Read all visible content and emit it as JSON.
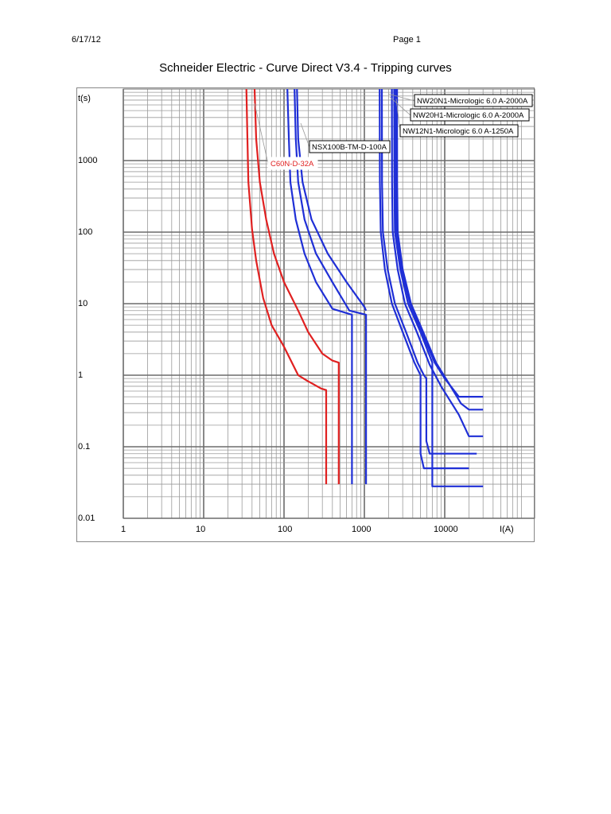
{
  "header": {
    "date": "6/17/12",
    "page": "Page 1"
  },
  "title": "Schneider Electric - Curve Direct V3.4 - Tripping curves",
  "chart_data": {
    "type": "line",
    "title": "Schneider Electric - Curve Direct V3.4 - Tripping curves",
    "xlabel": "I(A)",
    "ylabel": "t(s)",
    "xscale": "log",
    "yscale": "log",
    "xlim": [
      1,
      30000
    ],
    "ylim": [
      0.01,
      10000
    ],
    "grid": true,
    "x_tick_labels": [
      "1",
      "10",
      "100",
      "1000",
      "10000"
    ],
    "y_tick_labels": [
      "1000",
      "100",
      "10",
      "1",
      "0.1",
      "0.01"
    ],
    "curve_labels": [
      {
        "text": "NW20N1-Micrologic 6.0 A-2000A",
        "color": "#000000"
      },
      {
        "text": "NW20H1-Micrologic 6.0 A-2000A",
        "color": "#000000"
      },
      {
        "text": "NW12N1-Micrologic 6.0 A-1250A",
        "color": "#000000"
      },
      {
        "text": "NSX100B-TM-D-100A",
        "color": "#000000"
      },
      {
        "text": "C60N-D-32A",
        "color": "#e02020"
      }
    ],
    "series": [
      {
        "name": "C60N-D-32A",
        "color": "#e02020",
        "curves": [
          {
            "x": [
              34,
              35,
              36,
              40,
              45,
              55,
              70,
              100,
              150,
              190,
              290,
              335,
              335
            ],
            "y": [
              10000,
              2000,
              500,
              110,
              40,
              12,
              5,
              2.5,
              1,
              0.85,
              0.65,
              0.62,
              0.03
            ]
          },
          {
            "x": [
              43,
              45,
              50,
              60,
              75,
              100,
              150,
              200,
              300,
              400,
              480,
              480
            ],
            "y": [
              10000,
              2000,
              500,
              150,
              50,
              20,
              8,
              4,
              2,
              1.6,
              1.5,
              0.03
            ]
          }
        ]
      },
      {
        "name": "NSX100B-TM-D-100A",
        "color": "#1f2fd6",
        "curves": [
          {
            "x": [
              110,
              115,
              120,
              140,
              180,
              250,
              400,
              700,
              700
            ],
            "y": [
              10000,
              2000,
              500,
              150,
              50,
              20,
              8.5,
              7,
              0.03
            ]
          },
          {
            "x": [
              135,
              140,
              150,
              180,
              250,
              400,
              650,
              1050,
              1050
            ],
            "y": [
              10000,
              2000,
              500,
              150,
              50,
              20,
              8,
              7,
              0.03
            ]
          },
          {
            "x": [
              145,
              150,
              170,
              220,
              350,
              600,
              1000,
              1050
            ],
            "y": [
              10000,
              2000,
              500,
              150,
              50,
              20,
              9,
              8
            ]
          }
        ]
      },
      {
        "name": "NW12N1-Micrologic 6.0 A-1250A",
        "color": "#1f2fd6",
        "curves": [
          {
            "x": [
              1550,
              1560,
              1600,
              1800,
              2200,
              3000,
              4200,
              5000,
              5000,
              5500,
              20000
            ],
            "y": [
              10000,
              500,
              100,
              30,
              10,
              4,
              1.5,
              1,
              0.08,
              0.05,
              0.05
            ]
          },
          {
            "x": [
              1650,
              1660,
              1700,
              1950,
              2400,
              3300,
              4600,
              5500,
              5900,
              5900,
              6500,
              25000
            ],
            "y": [
              10000,
              500,
              100,
              30,
              10,
              4,
              1.5,
              1,
              0.9,
              0.12,
              0.08,
              0.08
            ]
          }
        ]
      },
      {
        "name": "NW20N1-Micrologic 6.0 A-2000A",
        "color": "#1f2fd6",
        "curves": [
          {
            "x": [
              2200,
              2210,
              2250,
              2600,
              3200,
              4500,
              6500,
              9000,
              15000,
              20000,
              30000
            ],
            "y": [
              10000,
              500,
              100,
              30,
              10,
              4,
              1.4,
              0.7,
              0.28,
              0.14,
              0.14
            ]
          },
          {
            "x": [
              2350,
              2360,
              2400,
              2800,
              3500,
              5000,
              7000,
              7000,
              8000,
              30000
            ],
            "y": [
              10000,
              500,
              100,
              30,
              10,
              4,
              1.5,
              0.028,
              0.028,
              0.028
            ]
          }
        ]
      },
      {
        "name": "NW20H1-Micrologic 6.0 A-2000A",
        "color": "#1f2fd6",
        "curves": [
          {
            "x": [
              2450,
              2460,
              2500,
              2900,
              3700,
              5200,
              7500,
              10000,
              15000,
              20000,
              30000
            ],
            "y": [
              10000,
              500,
              100,
              30,
              10,
              4,
              1.5,
              0.9,
              0.5,
              0.5,
              0.5
            ]
          },
          {
            "x": [
              2550,
              2560,
              2600,
              3000,
              3800,
              5400,
              7800,
              11000,
              16000,
              20000,
              30000
            ],
            "y": [
              10000,
              500,
              100,
              30,
              10,
              4,
              1.5,
              0.8,
              0.4,
              0.33,
              0.33
            ]
          }
        ]
      }
    ]
  }
}
